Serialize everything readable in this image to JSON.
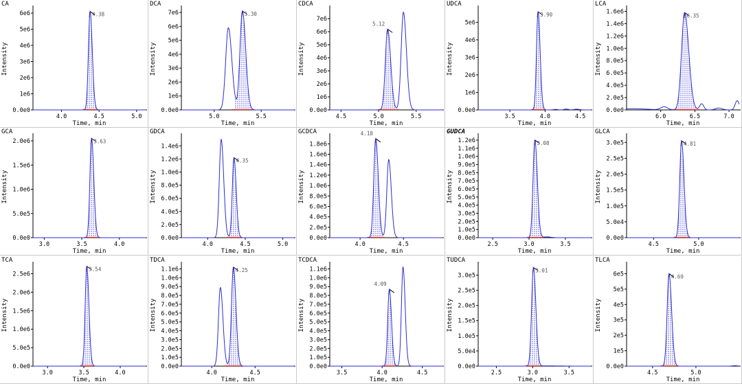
{
  "colors": {
    "trace": "#2b2bd0",
    "fill_hatch": "#4848d8",
    "baseline_red": "#e03030",
    "axis": "#000000",
    "peak_mark": "#000000"
  },
  "chart_data": [
    {
      "type": "line",
      "title": "CA",
      "xlabel": "Time, min",
      "ylabel": "Intensity",
      "xlim": [
        3.62,
        5.12
      ],
      "ylim": [
        0,
        6300000.0
      ],
      "xticks": [
        "4.0",
        "4.5",
        "5.0"
      ],
      "xtick_values": [
        4.0,
        4.5,
        5.0
      ],
      "yticks": [
        "0.0e0",
        "1e6",
        "2e6",
        "3e6",
        "4e6",
        "5e6",
        "6e6"
      ],
      "ytick_values": [
        0,
        1000000.0,
        2000000.0,
        3000000.0,
        4000000.0,
        5000000.0,
        6000000.0
      ],
      "peaks": [
        {
          "rt": 4.38,
          "height": 6100000.0,
          "width": 0.022,
          "label": "4.38",
          "integrated": true
        }
      ],
      "noise": []
    },
    {
      "type": "line",
      "title": "DCA",
      "xlabel": "Time, min",
      "ylabel": "Intensity",
      "xlim": [
        4.65,
        5.85
      ],
      "ylim": [
        0,
        7300000.0
      ],
      "xticks": [
        "5.0",
        "5.5"
      ],
      "xtick_values": [
        5.0,
        5.5
      ],
      "yticks": [
        "0.0e0",
        "1e6",
        "2e6",
        "3e6",
        "4e6",
        "5e6",
        "6e6",
        "7e6"
      ],
      "ytick_values": [
        0,
        1000000.0,
        2000000.0,
        3000000.0,
        4000000.0,
        5000000.0,
        6000000.0,
        7000000.0
      ],
      "peaks": [
        {
          "rt": 5.15,
          "height": 5900000.0,
          "width": 0.028,
          "label": "",
          "integrated": false
        },
        {
          "rt": 5.3,
          "height": 7100000.0,
          "width": 0.026,
          "label": "5.30",
          "integrated": true
        }
      ],
      "noise": []
    },
    {
      "type": "line",
      "title": "CDCA",
      "xlabel": "Time, min",
      "ylabel": "Intensity",
      "xlim": [
        4.35,
        5.85
      ],
      "ylim": [
        0,
        7800000.0
      ],
      "xticks": [
        "4.5",
        "5.0",
        "5.5"
      ],
      "xtick_values": [
        4.5,
        5.0,
        5.5
      ],
      "yticks": [
        "0.0e0",
        "1e6",
        "2e6",
        "3e6",
        "4e6",
        "5e6",
        "6e6",
        "7e6"
      ],
      "ytick_values": [
        0,
        1000000.0,
        2000000.0,
        3000000.0,
        4000000.0,
        5000000.0,
        6000000.0,
        7000000.0
      ],
      "peaks": [
        {
          "rt": 5.12,
          "height": 6200000.0,
          "width": 0.03,
          "label": "5.12",
          "integrated": true
        },
        {
          "rt": 5.33,
          "height": 7500000.0,
          "width": 0.03,
          "label": "",
          "integrated": false
        }
      ],
      "noise": []
    },
    {
      "type": "line",
      "title": "UDCA",
      "xlabel": "Time, min",
      "ylabel": "Intensity",
      "xlim": [
        3.05,
        4.65
      ],
      "ylim": [
        0,
        5800000.0
      ],
      "xticks": [
        "3.5",
        "4.0",
        "4.5"
      ],
      "xtick_values": [
        3.5,
        4.0,
        4.5
      ],
      "yticks": [
        "0.0e0",
        "1e6",
        "2e6",
        "3e6",
        "4e6",
        "5e6"
      ],
      "ytick_values": [
        0,
        1000000.0,
        2000000.0,
        3000000.0,
        4000000.0,
        5000000.0
      ],
      "peaks": [
        {
          "rt": 3.9,
          "height": 5600000.0,
          "width": 0.022,
          "label": "3.90",
          "integrated": true
        }
      ],
      "noise": [
        [
          4.15,
          30000.0,
          0.03
        ],
        [
          4.3,
          50000.0,
          0.03
        ],
        [
          4.45,
          40000.0,
          0.04
        ]
      ]
    },
    {
      "type": "line",
      "title": "LCA",
      "xlabel": "Time, min",
      "ylabel": "Intensity",
      "xlim": [
        5.5,
        7.15
      ],
      "ylim": [
        0,
        1650000.0
      ],
      "xticks": [
        "6.0",
        "6.5",
        "7.0"
      ],
      "xtick_values": [
        6.0,
        6.5,
        7.0
      ],
      "yticks": [
        "0.0e0",
        "2.0e5",
        "4.0e5",
        "6.0e5",
        "8.0e5",
        "1.0e6",
        "1.2e6",
        "1.4e6",
        "1.6e6"
      ],
      "ytick_values": [
        0,
        200000.0,
        400000.0,
        600000.0,
        800000.0,
        1000000.0,
        1200000.0,
        1400000.0,
        1600000.0
      ],
      "peaks": [
        {
          "rt": 6.35,
          "height": 1580000.0,
          "width": 0.045,
          "label": "6.35",
          "integrated": true
        }
      ],
      "noise": [
        [
          5.6,
          20000.0,
          0.2
        ],
        [
          6.05,
          50000.0,
          0.05
        ],
        [
          6.6,
          100000.0,
          0.03
        ],
        [
          7.12,
          150000.0,
          0.03
        ],
        [
          6.85,
          30000.0,
          0.05
        ]
      ]
    },
    {
      "type": "line",
      "title": "GCA",
      "xlabel": "Time, min",
      "ylabel": "Intensity",
      "xlim": [
        2.85,
        4.35
      ],
      "ylim": [
        0,
        2100000.0
      ],
      "xticks": [
        "3.0",
        "3.5",
        "4.0"
      ],
      "xtick_values": [
        3.0,
        3.5,
        4.0
      ],
      "yticks": [
        "0.0e0",
        "5.0e5",
        "1.0e6",
        "1.5e6",
        "2.0e6"
      ],
      "ytick_values": [
        0,
        500000.0,
        1000000.0,
        1500000.0,
        2000000.0
      ],
      "peaks": [
        {
          "rt": 3.63,
          "height": 2050000.0,
          "width": 0.022,
          "label": "3.63",
          "integrated": true
        }
      ],
      "noise": []
    },
    {
      "type": "line",
      "title": "GDCA",
      "xlabel": "Time, min",
      "ylabel": "Intensity",
      "xlim": [
        3.65,
        5.15
      ],
      "ylim": [
        0,
        1550000.0
      ],
      "xticks": [
        "4.0",
        "4.5",
        "5.0"
      ],
      "xtick_values": [
        4.0,
        4.5,
        5.0
      ],
      "yticks": [
        "0.0e0",
        "2.0e5",
        "4.0e5",
        "6.0e5",
        "8.0e5",
        "1.0e6",
        "1.2e6",
        "1.4e6"
      ],
      "ytick_values": [
        0,
        200000.0,
        400000.0,
        600000.0,
        800000.0,
        1000000.0,
        1200000.0,
        1400000.0
      ],
      "peaks": [
        {
          "rt": 4.18,
          "height": 1500000.0,
          "width": 0.025,
          "label": "",
          "integrated": false
        },
        {
          "rt": 4.35,
          "height": 1220000.0,
          "width": 0.022,
          "label": "4.35",
          "integrated": true
        }
      ],
      "noise": []
    },
    {
      "type": "line",
      "title": "GCDCA",
      "xlabel": "Time, min",
      "ylabel": "Intensity",
      "xlim": [
        3.65,
        4.95
      ],
      "ylim": [
        0,
        1950000.0
      ],
      "xticks": [
        "4.0",
        "4.5"
      ],
      "xtick_values": [
        4.0,
        4.5
      ],
      "yticks": [
        "0.0e0",
        "2.0e5",
        "4.0e5",
        "6.0e5",
        "8.0e5",
        "1.0e6",
        "1.2e6",
        "1.4e6",
        "1.6e6",
        "1.8e6"
      ],
      "ytick_values": [
        0,
        200000.0,
        400000.0,
        600000.0,
        800000.0,
        1000000.0,
        1200000.0,
        1400000.0,
        1600000.0,
        1800000.0
      ],
      "peaks": [
        {
          "rt": 4.18,
          "height": 1900000.0,
          "width": 0.022,
          "label": "4.18",
          "integrated": true
        },
        {
          "rt": 4.33,
          "height": 1500000.0,
          "width": 0.022,
          "label": "",
          "integrated": false
        }
      ],
      "noise": []
    },
    {
      "type": "line",
      "title": "GUDCA",
      "xlabel": "Time, min",
      "ylabel": "Intensity",
      "xlim": [
        2.3,
        3.85
      ],
      "ylim": [
        0,
        1250000.0
      ],
      "xticks": [
        "2.5",
        "3.0",
        "3.5"
      ],
      "xtick_values": [
        2.5,
        3.0,
        3.5
      ],
      "yticks": [
        "0.0e0",
        "1.0e5",
        "2.0e5",
        "3.0e5",
        "4.0e5",
        "5.0e5",
        "6.0e5",
        "7.0e5",
        "8.0e5",
        "9.0e5",
        "1.0e6",
        "1.1e6",
        "1.2e6"
      ],
      "ytick_values": [
        0,
        100000.0,
        200000.0,
        300000.0,
        400000.0,
        500000.0,
        600000.0,
        700000.0,
        800000.0,
        900000.0,
        1000000.0,
        1100000.0,
        1200000.0
      ],
      "peaks": [
        {
          "rt": 3.08,
          "height": 1200000.0,
          "width": 0.025,
          "label": "3.08",
          "integrated": true
        }
      ],
      "noise": [
        [
          3.25,
          10000.0,
          0.05
        ]
      ]
    },
    {
      "type": "line",
      "title": "GLCA",
      "xlabel": "Time, min",
      "ylabel": "Intensity",
      "xlim": [
        4.2,
        5.45
      ],
      "ylim": [
        0,
        320000.0
      ],
      "xticks": [
        "4.5",
        "5.0"
      ],
      "xtick_values": [
        4.5,
        5.0
      ],
      "yticks": [
        "0.0e0",
        "5.0e4",
        "1.0e5",
        "1.5e5",
        "2.0e5",
        "2.5e5",
        "3.0e5"
      ],
      "ytick_values": [
        0,
        50000.0,
        100000.0,
        150000.0,
        200000.0,
        250000.0,
        300000.0
      ],
      "peaks": [
        {
          "rt": 4.81,
          "height": 305000.0,
          "width": 0.02,
          "label": "4.81",
          "integrated": true
        }
      ],
      "noise": []
    },
    {
      "type": "line",
      "title": "TCA",
      "xlabel": "Time, min",
      "ylabel": "Intensity",
      "xlim": [
        2.8,
        4.35
      ],
      "ylim": [
        0,
        2750000.0
      ],
      "xticks": [
        "3.0",
        "3.5",
        "4.0"
      ],
      "xtick_values": [
        3.0,
        3.5,
        4.0
      ],
      "yticks": [
        "0.0e0",
        "5.0e5",
        "1.0e6",
        "1.5e6",
        "2.0e6",
        "2.5e6"
      ],
      "ytick_values": [
        0,
        500000.0,
        1000000.0,
        1500000.0,
        2000000.0,
        2500000.0
      ],
      "peaks": [
        {
          "rt": 3.54,
          "height": 2700000.0,
          "width": 0.022,
          "label": "3.54",
          "integrated": true
        }
      ],
      "noise": []
    },
    {
      "type": "line",
      "title": "TDCA",
      "xlabel": "Time, min",
      "ylabel": "Intensity",
      "xlim": [
        3.65,
        4.95
      ],
      "ylim": [
        0,
        1150000.0
      ],
      "xticks": [
        "4.0",
        "4.5"
      ],
      "xtick_values": [
        4.0,
        4.5
      ],
      "yticks": [
        "0.0e0",
        "1.0e5",
        "2.0e5",
        "3.0e5",
        "4.0e5",
        "5.0e5",
        "6.0e5",
        "7.0e5",
        "8.0e5",
        "9.0e5",
        "1.0e6",
        "1.1e6"
      ],
      "ytick_values": [
        0,
        100000.0,
        200000.0,
        300000.0,
        400000.0,
        500000.0,
        600000.0,
        700000.0,
        800000.0,
        900000.0,
        1000000.0,
        1100000.0
      ],
      "peaks": [
        {
          "rt": 4.1,
          "height": 890000.0,
          "width": 0.022,
          "label": "",
          "integrated": false
        },
        {
          "rt": 4.25,
          "height": 1120000.0,
          "width": 0.022,
          "label": "4.25",
          "integrated": true
        }
      ],
      "noise": []
    },
    {
      "type": "line",
      "title": "TCDCA",
      "xlabel": "Time, min",
      "ylabel": "Intensity",
      "xlim": [
        3.35,
        4.75
      ],
      "ylim": [
        0,
        1150000.0
      ],
      "xticks": [
        "3.5",
        "4.0",
        "4.5"
      ],
      "xtick_values": [
        3.5,
        4.0,
        4.5
      ],
      "yticks": [
        "0.0e0",
        "1.0e5",
        "2.0e5",
        "3.0e5",
        "4.0e5",
        "5.0e5",
        "6.0e5",
        "7.0e5",
        "8.0e5",
        "9.0e5",
        "1.0e6",
        "1.1e6"
      ],
      "ytick_values": [
        0,
        100000.0,
        200000.0,
        300000.0,
        400000.0,
        500000.0,
        600000.0,
        700000.0,
        800000.0,
        900000.0,
        1000000.0,
        1100000.0
      ],
      "peaks": [
        {
          "rt": 4.09,
          "height": 870000.0,
          "width": 0.02,
          "label": "4.09",
          "integrated": true
        },
        {
          "rt": 4.26,
          "height": 1120000.0,
          "width": 0.02,
          "label": "",
          "integrated": false
        }
      ],
      "noise": []
    },
    {
      "type": "line",
      "title": "TUDCA",
      "xlabel": "Time, min",
      "ylabel": "Intensity",
      "xlim": [
        2.25,
        3.8
      ],
      "ylim": [
        0,
        335000.0
      ],
      "xticks": [
        "2.5",
        "3.0",
        "3.5"
      ],
      "xtick_values": [
        2.5,
        3.0,
        3.5
      ],
      "yticks": [
        "0.0e0",
        "5.0e4",
        "1.0e5",
        "1.5e5",
        "2.0e5",
        "2.5e5",
        "3.0e5"
      ],
      "ytick_values": [
        0,
        50000.0,
        100000.0,
        150000.0,
        200000.0,
        250000.0,
        300000.0
      ],
      "peaks": [
        {
          "rt": 3.01,
          "height": 325000.0,
          "width": 0.025,
          "label": "3.01",
          "integrated": true
        }
      ],
      "noise": [
        [
          3.2,
          800.0,
          0.1
        ],
        [
          3.4,
          400.0,
          0.1
        ]
      ]
    },
    {
      "type": "line",
      "title": "TLCA",
      "xlabel": "Time, min",
      "ylabel": "Intensity",
      "xlim": [
        4.2,
        5.5
      ],
      "ylim": [
        0,
        660000.0
      ],
      "xticks": [
        "4.5",
        "5.0"
      ],
      "xtick_values": [
        4.5,
        5.0
      ],
      "yticks": [
        "0.0e0",
        "1e5",
        "2e5",
        "3e5",
        "4e5",
        "5e5",
        "6e5"
      ],
      "ytick_values": [
        0,
        100000.0,
        200000.0,
        300000.0,
        400000.0,
        500000.0,
        600000.0
      ],
      "peaks": [
        {
          "rt": 4.69,
          "height": 600000.0,
          "width": 0.022,
          "label": "4.69",
          "integrated": true
        }
      ],
      "noise": [
        [
          5.45,
          3000.0,
          0.03
        ]
      ]
    }
  ]
}
